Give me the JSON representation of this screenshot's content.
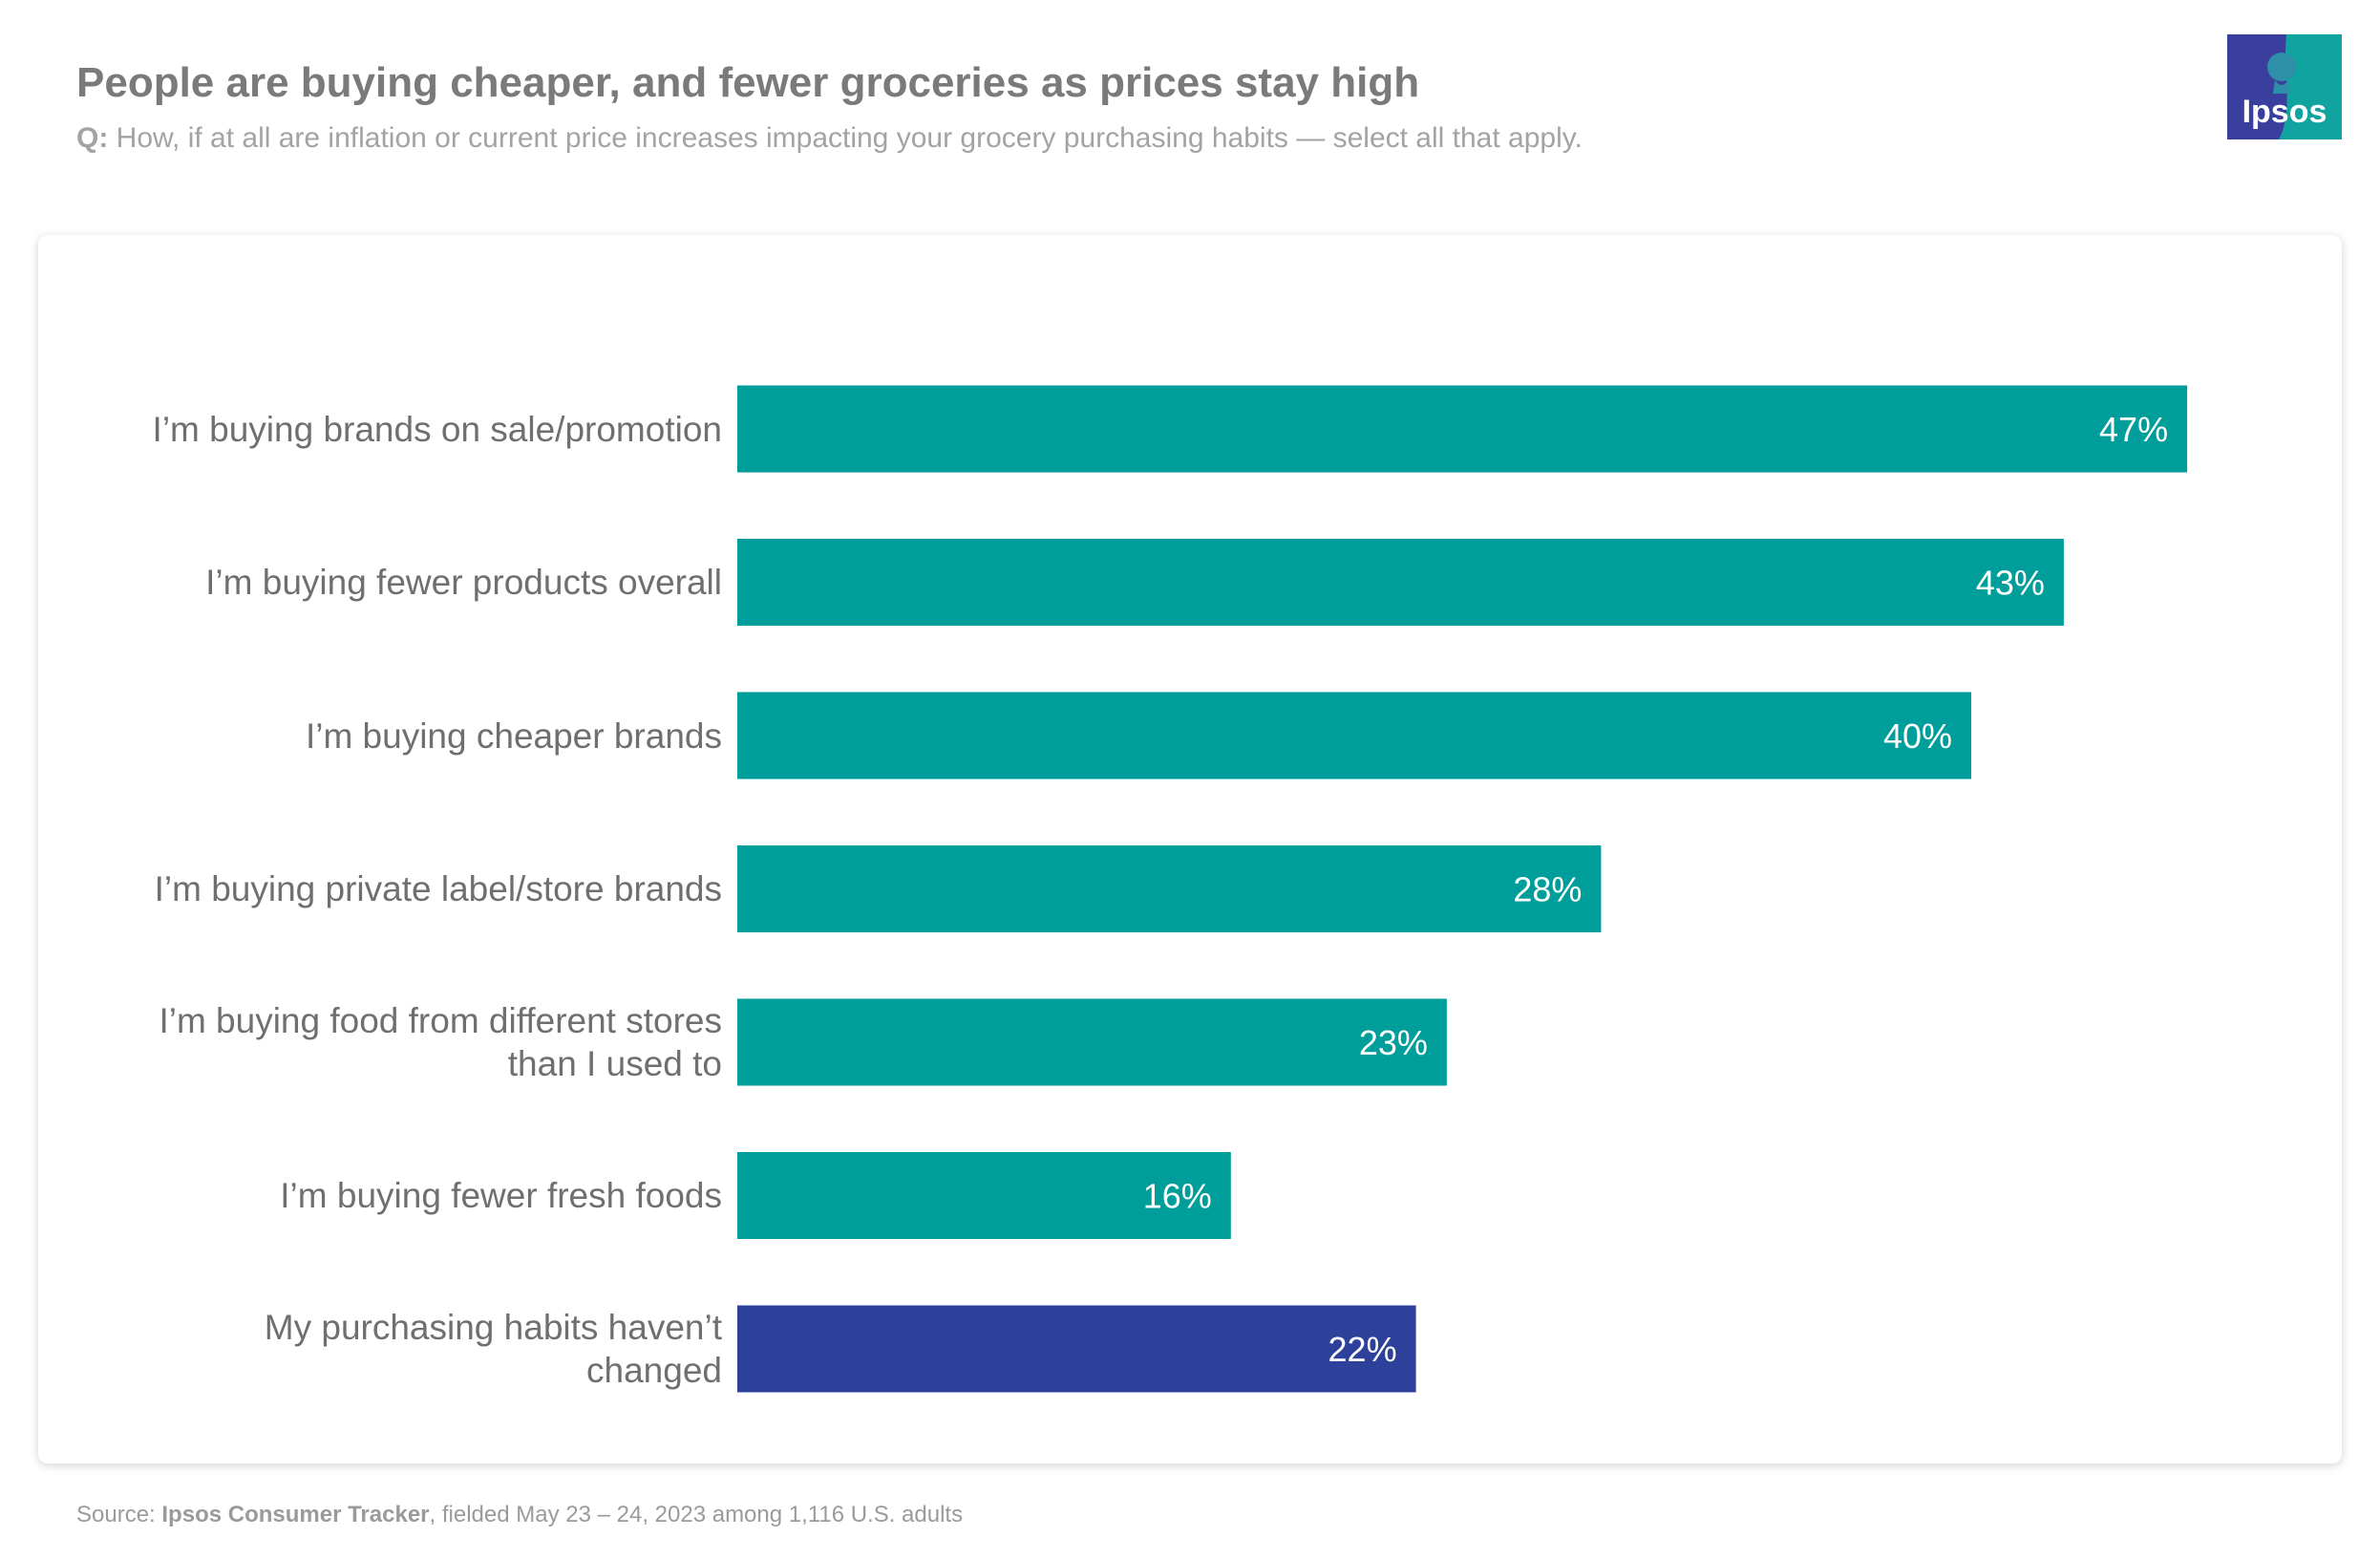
{
  "header": {
    "title": "People are buying cheaper, and fewer groceries as prices stay high",
    "question_prefix": "Q:",
    "question_text": "How, if at all are inflation or current price increases impacting your grocery purchasing habits — select all that apply."
  },
  "logo": {
    "text": "Ipsos",
    "colors": {
      "left": "#3a3f9e",
      "right": "#11a3a0"
    }
  },
  "chart_data": {
    "type": "bar",
    "orientation": "horizontal",
    "title": "People are buying cheaper, and fewer groceries as prices stay high",
    "xlabel": "",
    "ylabel": "",
    "xlim": [
      0,
      50
    ],
    "grid": false,
    "legend": "none",
    "categories": [
      "I’m buying brands on sale/promotion",
      "I’m buying fewer products overall",
      "I’m buying cheaper brands",
      "I’m buying private label/store brands",
      "I’m buying food from different stores than I used to",
      "I’m buying fewer fresh foods",
      "My purchasing habits haven’t changed"
    ],
    "category_lines": [
      [
        "I’m buying brands on sale/promotion"
      ],
      [
        "I’m buying fewer products overall"
      ],
      [
        "I’m buying cheaper brands"
      ],
      [
        "I’m buying private label/store brands"
      ],
      [
        "I’m buying food from different stores",
        "than I used to"
      ],
      [
        "I’m buying fewer fresh foods"
      ],
      [
        "My purchasing habits haven’t",
        "changed"
      ]
    ],
    "values": [
      47,
      43,
      40,
      28,
      23,
      16,
      22
    ],
    "value_labels": [
      "47%",
      "43%",
      "40%",
      "28%",
      "23%",
      "16%",
      "22%"
    ],
    "bar_colors": [
      "#009e9b",
      "#009e9b",
      "#009e9b",
      "#009e9b",
      "#009e9b",
      "#009e9b",
      "#2e419a"
    ],
    "value_label_color": "#ffffff"
  },
  "footer": {
    "source_prefix": "Source: ",
    "source_bold": "Ipsos Consumer Tracker",
    "source_rest": ", fielded May 23 – 24, 2023 among 1,116 U.S. adults"
  }
}
